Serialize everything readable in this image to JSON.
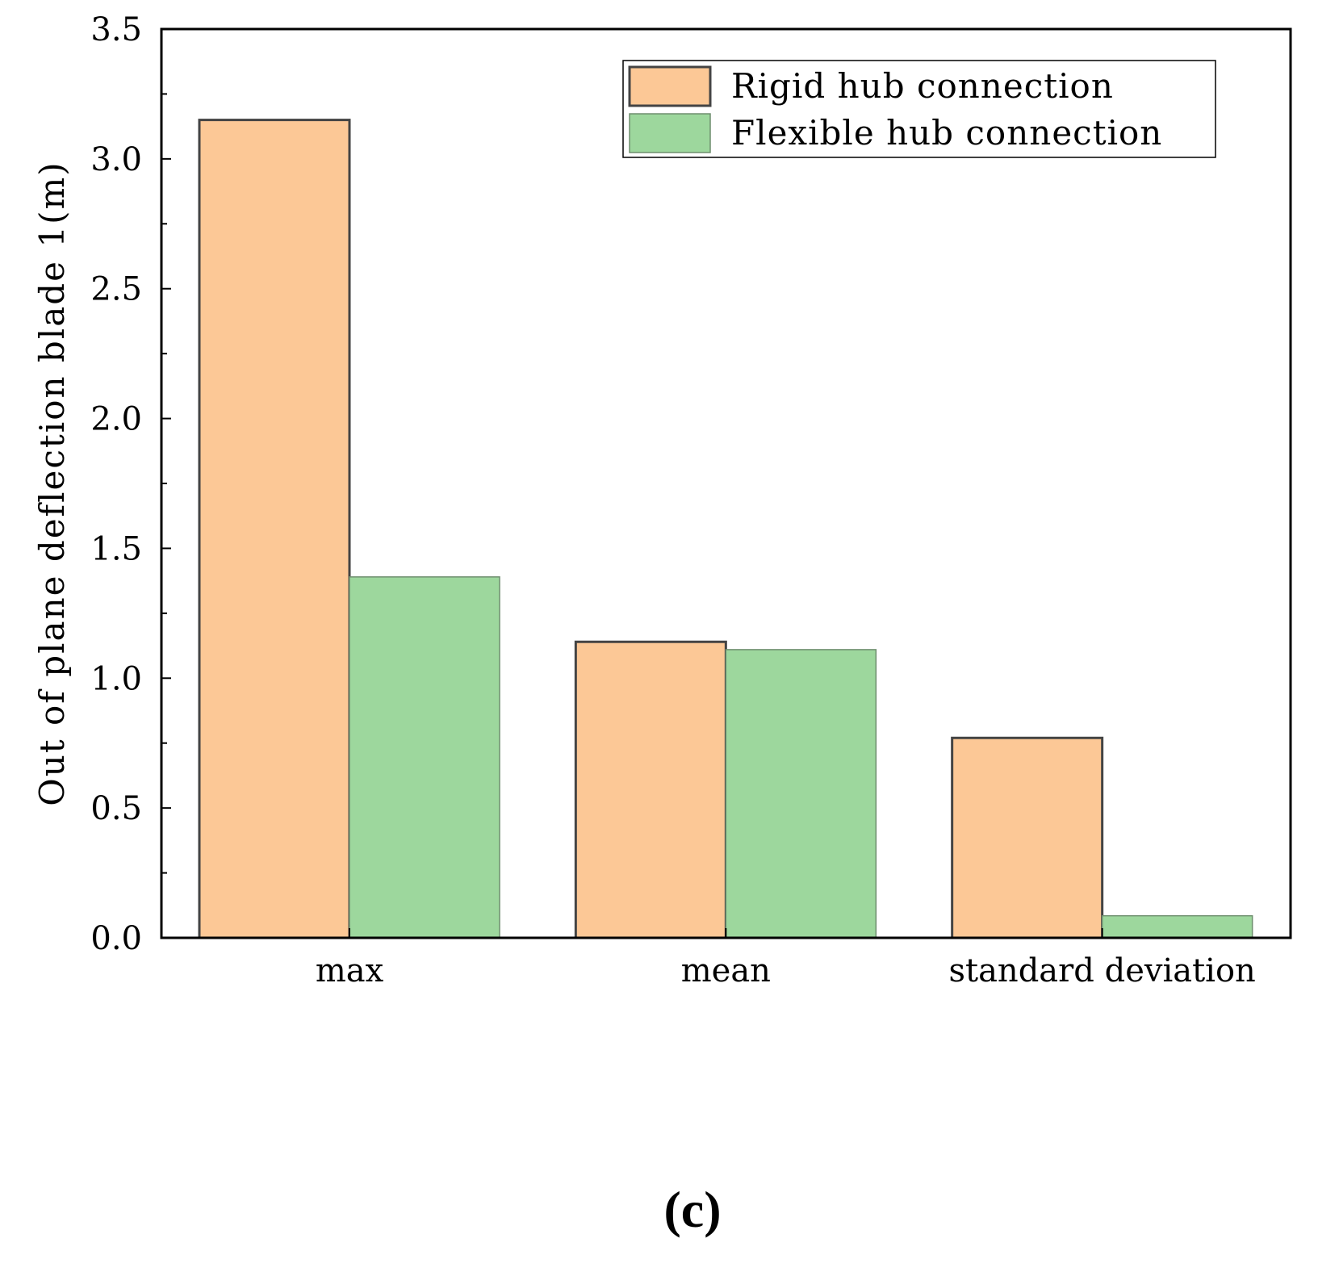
{
  "chart_data": {
    "type": "bar",
    "categories": [
      "max",
      "mean",
      "standard deviation"
    ],
    "series": [
      {
        "name": "Rigid hub connection",
        "values": [
          3.15,
          1.14,
          0.77
        ],
        "color": "#FCC896",
        "outline": "#444444"
      },
      {
        "name": "Flexible hub connection",
        "values": [
          1.39,
          1.11,
          0.085
        ],
        "color": "#9DD79D",
        "outline": "#6E8E6E"
      }
    ],
    "title": "",
    "xlabel": "",
    "ylabel": "Out of plane deflection blade 1(m)",
    "ylim": [
      0,
      3.5
    ],
    "yticks": [
      0.0,
      0.5,
      1.0,
      1.5,
      2.0,
      2.5,
      3.0,
      3.5
    ],
    "ytick_labels": [
      "0.0",
      "0.5",
      "1.0",
      "1.5",
      "2.0",
      "2.5",
      "3.0",
      "3.5"
    ],
    "grid": false,
    "legend_position": "top-right",
    "panel_label": "(c)"
  }
}
